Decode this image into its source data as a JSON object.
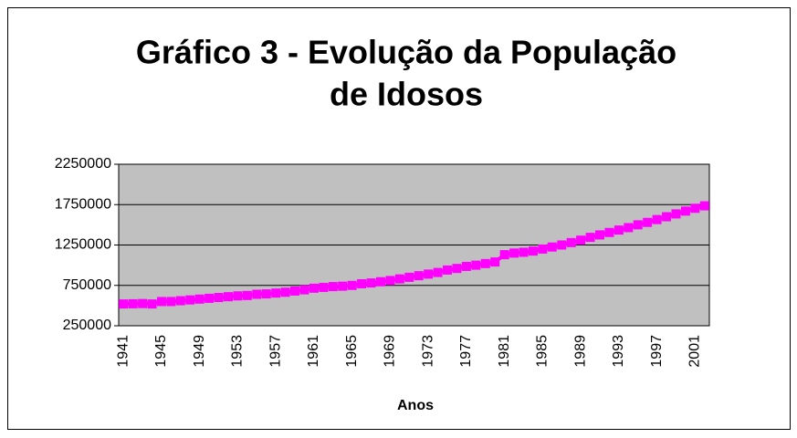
{
  "chart_data": {
    "type": "line",
    "title": "Gráfico 3 - Evolução da População",
    "title_line2": "de Idosos",
    "x_label": "Anos",
    "categories": [
      "1941",
      null,
      null,
      null,
      "1945",
      null,
      null,
      null,
      "1949",
      null,
      null,
      null,
      "1953",
      null,
      null,
      null,
      "1957",
      null,
      null,
      null,
      "1961",
      null,
      null,
      null,
      "1965",
      null,
      null,
      null,
      "1969",
      null,
      null,
      null,
      "1973",
      null,
      null,
      null,
      "1977",
      null,
      null,
      null,
      "1981",
      null,
      null,
      null,
      "1985",
      null,
      null,
      null,
      "1989",
      null,
      null,
      null,
      "1993",
      null,
      null,
      null,
      "1997",
      null,
      null,
      null,
      "2001",
      null
    ],
    "series": [
      {
        "color": "#ff00ff",
        "values": [
          520000,
          522000,
          525000,
          520000,
          550000,
          550000,
          560000,
          570000,
          580000,
          590000,
          600000,
          610000,
          620000,
          625000,
          640000,
          645000,
          655000,
          665000,
          680000,
          695000,
          715000,
          725000,
          735000,
          740000,
          750000,
          770000,
          780000,
          795000,
          810000,
          830000,
          850000,
          870000,
          890000,
          910000,
          940000,
          960000,
          985000,
          1000000,
          1020000,
          1040000,
          1130000,
          1150000,
          1160000,
          1175000,
          1200000,
          1225000,
          1250000,
          1280000,
          1310000,
          1345000,
          1375000,
          1405000,
          1435000,
          1465000,
          1500000,
          1530000,
          1565000,
          1600000,
          1635000,
          1670000,
          1705000,
          1735000
        ]
      }
    ],
    "ylim": [
      250000,
      2250000
    ],
    "yticks": [
      250000,
      750000,
      1250000,
      1750000,
      2250000
    ],
    "grid": true,
    "plot_background": "#c0c0c0"
  }
}
